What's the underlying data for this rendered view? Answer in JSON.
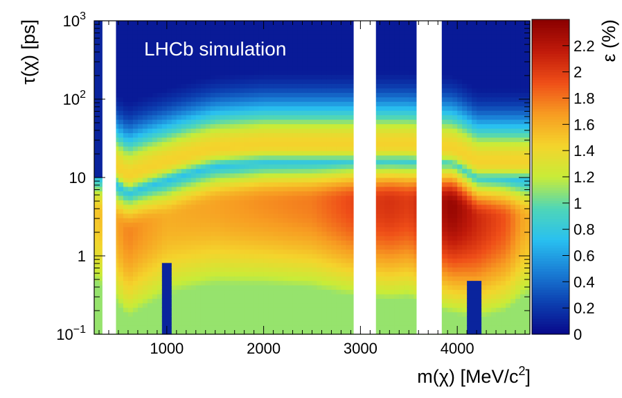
{
  "chart_data": {
    "type": "heatmap",
    "annotation": "LHCb simulation",
    "xlabel": "m(χ) [MeV/c²]",
    "xlabel_parts": {
      "main": "m(χ) [MeV/c",
      "sup": "2",
      "end": "]"
    },
    "ylabel": "τ(χ) [ps]",
    "zlabel": "ε (%)",
    "xlim": [
      250,
      4750
    ],
    "ylim": [
      0.1,
      1000
    ],
    "yscale": "log",
    "zlim": [
      0,
      2.4
    ],
    "x_tick_labels": [
      {
        "value": 1000,
        "label": "1000"
      },
      {
        "value": 2000,
        "label": "2000"
      },
      {
        "value": 3000,
        "label": "3000"
      },
      {
        "value": 4000,
        "label": "4000"
      }
    ],
    "y_tick_labels": [
      {
        "value": 0.1,
        "base": "10",
        "exp": "−1"
      },
      {
        "value": 1,
        "base": "1",
        "exp": ""
      },
      {
        "value": 10,
        "base": "10",
        "exp": ""
      },
      {
        "value": 100,
        "base": "10",
        "exp": "2"
      },
      {
        "value": 1000,
        "base": "10",
        "exp": "3"
      }
    ],
    "z_tick_labels": [
      {
        "value": 0,
        "label": "0"
      },
      {
        "value": 0.2,
        "label": "0.2"
      },
      {
        "value": 0.4,
        "label": "0.4"
      },
      {
        "value": 0.6,
        "label": "0.6"
      },
      {
        "value": 0.8,
        "label": "0.8"
      },
      {
        "value": 1.0,
        "label": "1"
      },
      {
        "value": 1.2,
        "label": "1.2"
      },
      {
        "value": 1.4,
        "label": "1.4"
      },
      {
        "value": 1.6,
        "label": "1.6"
      },
      {
        "value": 1.8,
        "label": "1.8"
      },
      {
        "value": 2.0,
        "label": "2"
      },
      {
        "value": 2.2,
        "label": "2.2"
      }
    ],
    "excluded_mass_ranges": [
      [
        335,
        475
      ],
      [
        2930,
        3160
      ],
      [
        3580,
        3840
      ]
    ],
    "low_efficiency_bands": [
      {
        "x_range": [
          250,
          335
        ],
        "y_range": [
          10,
          1000
        ]
      },
      {
        "x_range": [
          970,
          1030
        ],
        "y_range": [
          0.1,
          0.8
        ]
      },
      {
        "x_range": [
          4080,
          4250
        ],
        "y_range": [
          0.1,
          0.5
        ]
      }
    ],
    "efficiency_profile_by_mass": [
      {
        "mass": 300,
        "tau_peak": 3.5,
        "eps_peak": 1.5
      },
      {
        "mass": 600,
        "tau_peak": 2.0,
        "eps_peak": 1.75
      },
      {
        "mass": 1000,
        "tau_peak": 3.0,
        "eps_peak": 1.6
      },
      {
        "mass": 1500,
        "tau_peak": 4.5,
        "eps_peak": 1.65
      },
      {
        "mass": 2000,
        "tau_peak": 5.0,
        "eps_peak": 1.72
      },
      {
        "mass": 2500,
        "tau_peak": 5.0,
        "eps_peak": 1.78
      },
      {
        "mass": 2900,
        "tau_peak": 5.0,
        "eps_peak": 1.95
      },
      {
        "mass": 3300,
        "tau_peak": 5.0,
        "eps_peak": 2.05
      },
      {
        "mass": 3500,
        "tau_peak": 5.0,
        "eps_peak": 2.0
      },
      {
        "mass": 3950,
        "tau_peak": 4.5,
        "eps_peak": 2.35
      },
      {
        "mass": 4200,
        "tau_peak": 3.0,
        "eps_peak": 2.1
      },
      {
        "mass": 4500,
        "tau_peak": 3.0,
        "eps_peak": 1.9
      },
      {
        "mass": 4700,
        "tau_peak": 3.0,
        "eps_peak": 1.6
      }
    ],
    "colormap": [
      "#08088a",
      "#0c3fb0",
      "#1a7fd6",
      "#29c0f0",
      "#4fd6b8",
      "#c8ec38",
      "#f4d42c",
      "#f79c22",
      "#ef4e18",
      "#c01a0a",
      "#8a0000"
    ]
  }
}
